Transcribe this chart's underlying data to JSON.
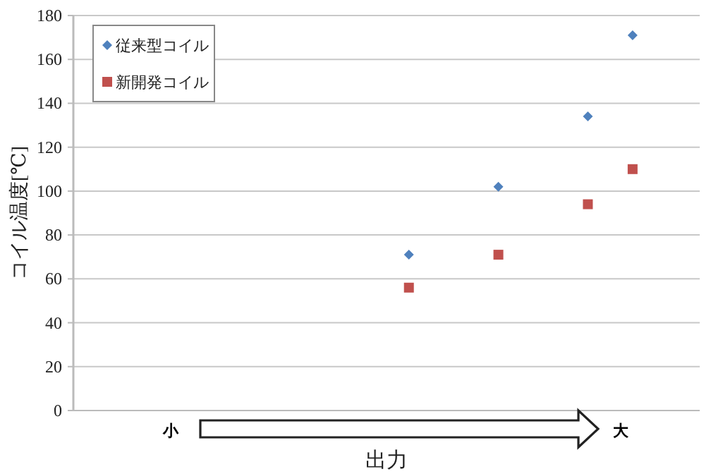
{
  "chart_data": {
    "type": "scatter",
    "ylabel": "コイル温度[℃]",
    "xlabel": "出力",
    "categories": [
      null,
      null,
      null,
      null,
      null,
      null,
      null,
      null,
      null,
      null,
      null,
      null,
      null,
      null
    ],
    "tick_labels": "y",
    "ylim": [
      0,
      180
    ],
    "yticks": [
      0,
      20,
      40,
      60,
      80,
      100,
      120,
      140,
      160,
      180
    ],
    "grid": "y",
    "legend": "top left",
    "series": [
      {
        "name": "従来型コイル",
        "color": "#4f81bd",
        "marker": "diamond",
        "values": [
          null,
          null,
          null,
          null,
          null,
          null,
          null,
          71,
          null,
          102,
          null,
          134,
          171,
          null
        ]
      },
      {
        "name": "新開発コイル",
        "color": "#c0504d",
        "marker": "square",
        "values": [
          null,
          null,
          null,
          null,
          null,
          null,
          null,
          56,
          null,
          71,
          null,
          94,
          110,
          null
        ]
      }
    ],
    "annotations": [
      "小",
      "大"
    ]
  }
}
